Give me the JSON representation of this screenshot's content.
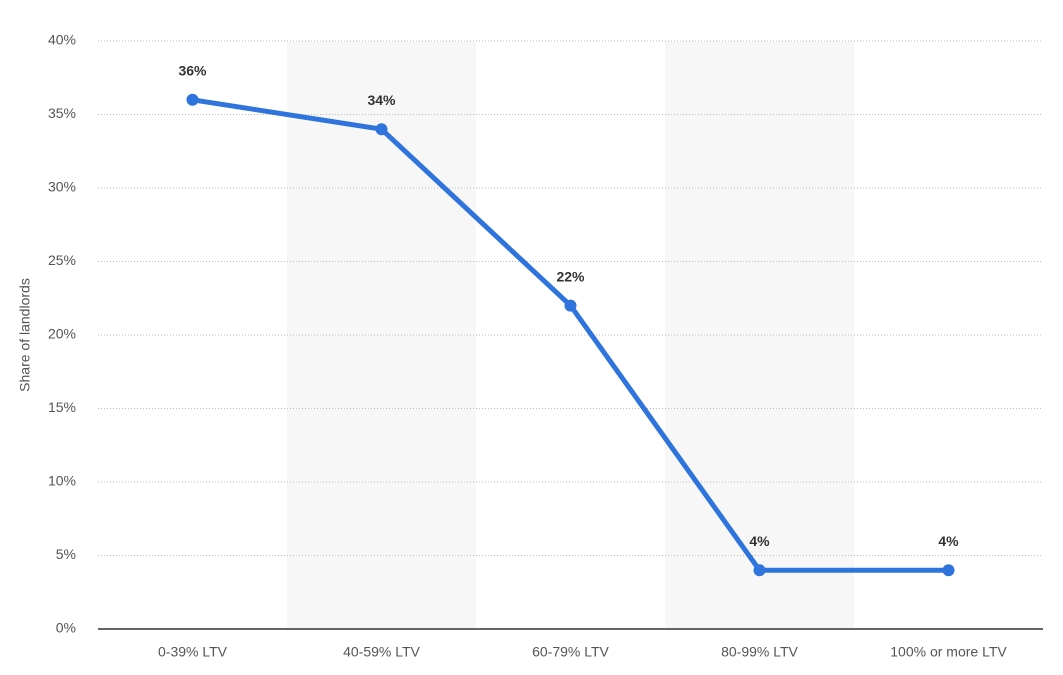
{
  "chart_data": {
    "type": "line",
    "y_label": "Share of landlords",
    "categories": [
      "0-39% LTV",
      "40-59% LTV",
      "60-79% LTV",
      "80-99% LTV",
      "100% or more LTV"
    ],
    "values": [
      36,
      34,
      22,
      4,
      4
    ],
    "value_labels": [
      "36%",
      "34%",
      "22%",
      "4%",
      "4%"
    ],
    "color": "#2f74dc",
    "ylim": [
      0,
      40
    ],
    "yticks": [
      {
        "value": 0,
        "label": "0%"
      },
      {
        "value": 5,
        "label": "5%"
      },
      {
        "value": 10,
        "label": "10%"
      },
      {
        "value": 15,
        "label": "15%"
      },
      {
        "value": 20,
        "label": "20%"
      },
      {
        "value": 25,
        "label": "25%"
      },
      {
        "value": 30,
        "label": "30%"
      },
      {
        "value": 35,
        "label": "35%"
      },
      {
        "value": 40,
        "label": "40%"
      }
    ],
    "grid": true
  }
}
